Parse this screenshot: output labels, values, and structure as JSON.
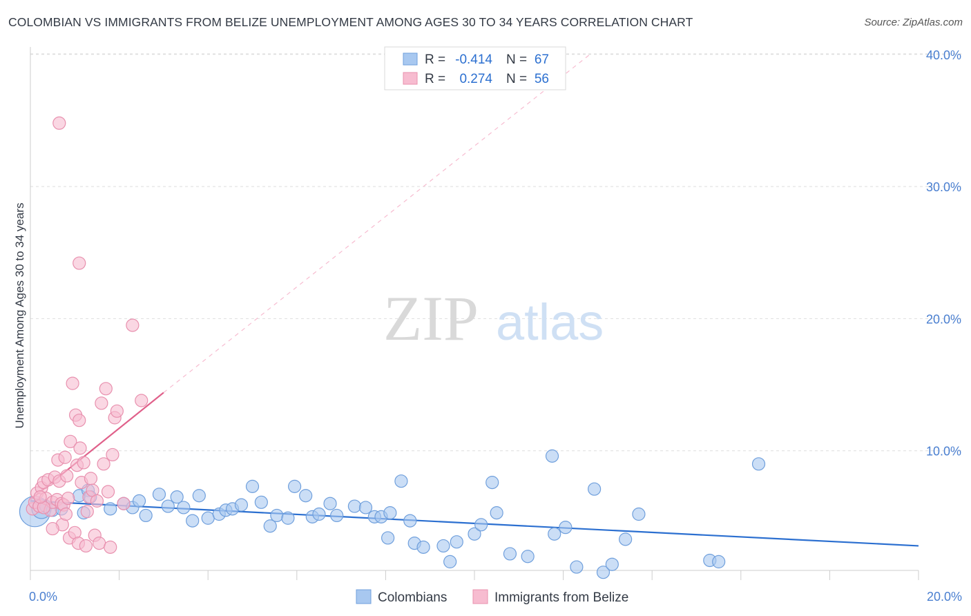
{
  "header": {
    "title": "COLOMBIAN VS IMMIGRANTS FROM BELIZE UNEMPLOYMENT AMONG AGES 30 TO 34 YEARS CORRELATION CHART",
    "source": "Source: ZipAtlas.com"
  },
  "watermark": {
    "zip": "ZIP",
    "atlas": "atlas"
  },
  "legend_top": {
    "row1": {
      "r_label": "R =",
      "r_value": "-0.414",
      "n_label": "N =",
      "n_value": "67"
    },
    "row2": {
      "r_label": "R =",
      "r_value": "0.274",
      "n_label": "N =",
      "n_value": "56"
    }
  },
  "colors": {
    "blue_fill": "#a8c8f0",
    "blue_stroke": "#6f9fdc",
    "blue_line": "#2b6fd0",
    "pink_fill": "#f7bcd0",
    "pink_stroke": "#e890ae",
    "pink_line": "#e0608a",
    "axis_text": "#4a7fd0",
    "grid": "#dddddd"
  },
  "chart_data": {
    "type": "scatter",
    "title": "COLOMBIAN VS IMMIGRANTS FROM BELIZE UNEMPLOYMENT AMONG AGES 30 TO 34 YEARS CORRELATION CHART",
    "xlabel": "",
    "ylabel": "Unemployment Among Ages 30 to 34 years",
    "xlim": [
      0,
      20
    ],
    "ylim": [
      0,
      42
    ],
    "x_ticks": [
      0,
      2,
      4,
      6,
      8,
      10,
      12,
      14,
      16,
      18,
      20
    ],
    "x_tick_labels": {
      "0": "0.0%",
      "20": "20.0%"
    },
    "y_ticks": [
      10,
      20,
      30,
      40
    ],
    "y_tick_labels": [
      "10.0%",
      "20.0%",
      "30.0%",
      "40.0%"
    ],
    "series": [
      {
        "name": "Colombians",
        "r": -0.414,
        "n": 67,
        "trend": {
          "x": [
            0,
            20
          ],
          "y": [
            6.2,
            2.8
          ],
          "dashed_ext": null
        },
        "points": [
          [
            0.1,
            5.4,
            22
          ],
          [
            0.25,
            5.6,
            14
          ],
          [
            0.35,
            5.8,
            9
          ],
          [
            0.5,
            5.5,
            9
          ],
          [
            0.7,
            5.6,
            9
          ],
          [
            1.1,
            6.6,
            9
          ],
          [
            1.2,
            5.3,
            9
          ],
          [
            1.3,
            7.0,
            9
          ],
          [
            1.35,
            6.5,
            9
          ],
          [
            1.8,
            5.6,
            9
          ],
          [
            2.1,
            6.0,
            9
          ],
          [
            2.3,
            5.7,
            9
          ],
          [
            2.45,
            6.2,
            9
          ],
          [
            2.6,
            5.1,
            9
          ],
          [
            2.9,
            6.7,
            9
          ],
          [
            3.1,
            5.8,
            9
          ],
          [
            3.3,
            6.5,
            9
          ],
          [
            3.45,
            5.7,
            9
          ],
          [
            3.65,
            4.7,
            9
          ],
          [
            3.8,
            6.6,
            9
          ],
          [
            4.0,
            4.9,
            9
          ],
          [
            4.25,
            5.2,
            9
          ],
          [
            4.4,
            5.5,
            9
          ],
          [
            4.55,
            5.6,
            9
          ],
          [
            4.75,
            5.9,
            9
          ],
          [
            5.0,
            7.3,
            9
          ],
          [
            5.2,
            6.1,
            9
          ],
          [
            5.4,
            4.3,
            9
          ],
          [
            5.55,
            5.1,
            9
          ],
          [
            5.8,
            4.9,
            9
          ],
          [
            5.95,
            7.3,
            9
          ],
          [
            6.2,
            6.6,
            9
          ],
          [
            6.35,
            5.0,
            9
          ],
          [
            6.5,
            5.2,
            9
          ],
          [
            6.75,
            6.0,
            9
          ],
          [
            6.9,
            5.1,
            9
          ],
          [
            7.3,
            5.8,
            9
          ],
          [
            7.55,
            5.7,
            9
          ],
          [
            7.75,
            5.0,
            9
          ],
          [
            7.9,
            5.0,
            9
          ],
          [
            8.05,
            3.4,
            9
          ],
          [
            8.1,
            5.3,
            9
          ],
          [
            8.35,
            7.7,
            9
          ],
          [
            8.55,
            4.7,
            9
          ],
          [
            8.65,
            3.0,
            9
          ],
          [
            8.85,
            2.7,
            9
          ],
          [
            9.3,
            2.8,
            9
          ],
          [
            9.45,
            1.6,
            9
          ],
          [
            9.6,
            3.1,
            9
          ],
          [
            10.0,
            3.7,
            9
          ],
          [
            10.15,
            4.4,
            9
          ],
          [
            10.4,
            7.6,
            9
          ],
          [
            10.5,
            5.3,
            9
          ],
          [
            10.8,
            2.2,
            9
          ],
          [
            11.2,
            2.0,
            9
          ],
          [
            11.75,
            9.6,
            9
          ],
          [
            11.8,
            3.7,
            9
          ],
          [
            12.05,
            4.2,
            9
          ],
          [
            12.3,
            1.2,
            9
          ],
          [
            12.7,
            7.1,
            9
          ],
          [
            12.9,
            0.8,
            9
          ],
          [
            13.1,
            1.4,
            9
          ],
          [
            13.4,
            3.3,
            9
          ],
          [
            13.7,
            5.2,
            9
          ],
          [
            15.3,
            1.7,
            9
          ],
          [
            15.5,
            1.6,
            9
          ],
          [
            16.4,
            9.0,
            9
          ]
        ]
      },
      {
        "name": "Immigrants from Belize",
        "r": 0.274,
        "n": 56,
        "trend": {
          "x": [
            0,
            3.0
          ],
          "y": [
            6.3,
            14.4
          ],
          "dashed_ext": {
            "x": [
              3.0,
              12.6
            ],
            "y": [
              14.4,
              40.0
            ]
          }
        },
        "points": [
          [
            0.05,
            5.6,
            9
          ],
          [
            0.1,
            6.1,
            9
          ],
          [
            0.15,
            6.8,
            9
          ],
          [
            0.2,
            5.8,
            9
          ],
          [
            0.25,
            7.2,
            9
          ],
          [
            0.3,
            7.6,
            9
          ],
          [
            0.35,
            6.4,
            9
          ],
          [
            0.4,
            7.8,
            9
          ],
          [
            0.45,
            5.5,
            9
          ],
          [
            0.5,
            6.1,
            9
          ],
          [
            0.55,
            8.0,
            9
          ],
          [
            0.6,
            6.3,
            9
          ],
          [
            0.62,
            9.3,
            9
          ],
          [
            0.65,
            7.7,
            9
          ],
          [
            0.7,
            6.0,
            9
          ],
          [
            0.72,
            4.4,
            9
          ],
          [
            0.75,
            5.9,
            9
          ],
          [
            0.78,
            9.5,
            9
          ],
          [
            0.8,
            5.2,
            9
          ],
          [
            0.82,
            8.1,
            9
          ],
          [
            0.85,
            6.4,
            9
          ],
          [
            0.88,
            3.4,
            9
          ],
          [
            0.9,
            10.7,
            9
          ],
          [
            0.95,
            15.1,
            9
          ],
          [
            1.0,
            3.8,
            9
          ],
          [
            1.02,
            12.7,
            9
          ],
          [
            1.05,
            8.9,
            9
          ],
          [
            1.08,
            3.0,
            9
          ],
          [
            1.1,
            12.3,
            9
          ],
          [
            1.12,
            10.2,
            9
          ],
          [
            1.15,
            7.6,
            9
          ],
          [
            1.2,
            9.1,
            9
          ],
          [
            1.25,
            2.8,
            9
          ],
          [
            1.28,
            5.4,
            9
          ],
          [
            1.32,
            6.5,
            9
          ],
          [
            1.36,
            7.9,
            9
          ],
          [
            1.4,
            7.0,
            9
          ],
          [
            1.45,
            3.6,
            9
          ],
          [
            1.5,
            6.2,
            9
          ],
          [
            1.55,
            3.0,
            9
          ],
          [
            1.6,
            13.6,
            9
          ],
          [
            1.65,
            9.0,
            9
          ],
          [
            1.7,
            14.7,
            9
          ],
          [
            1.75,
            6.9,
            9
          ],
          [
            1.8,
            2.7,
            9
          ],
          [
            1.85,
            9.7,
            9
          ],
          [
            1.9,
            12.5,
            9
          ],
          [
            1.95,
            13.0,
            9
          ],
          [
            2.1,
            6.0,
            9
          ],
          [
            2.3,
            19.5,
            9
          ],
          [
            2.5,
            13.8,
            9
          ],
          [
            1.1,
            24.2,
            9
          ],
          [
            0.65,
            34.8,
            9
          ],
          [
            0.3,
            5.7,
            9
          ],
          [
            0.22,
            6.5,
            9
          ],
          [
            0.5,
            4.1,
            9
          ]
        ]
      }
    ]
  },
  "bottom_legend": {
    "colombians": "Colombians",
    "belize": "Immigrants from Belize"
  }
}
